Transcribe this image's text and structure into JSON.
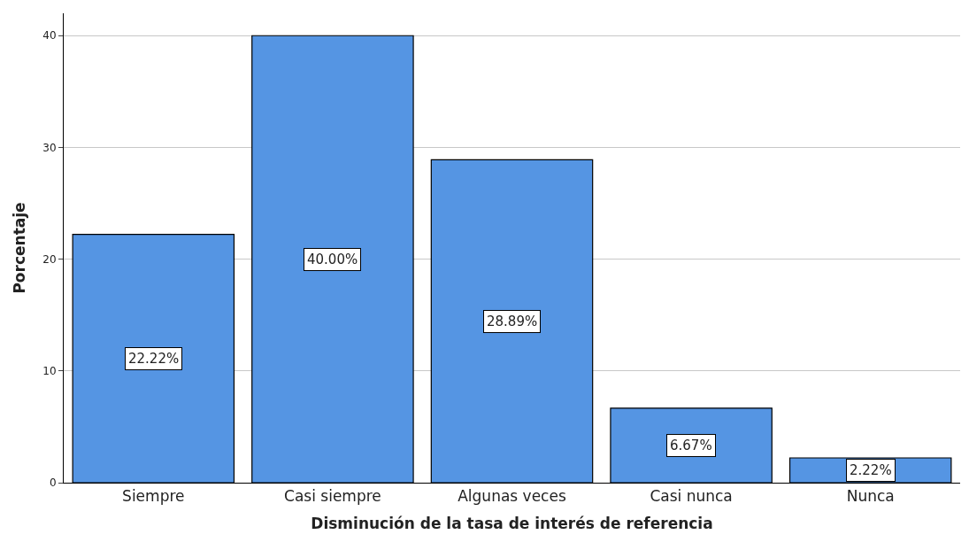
{
  "chart_data": {
    "type": "bar",
    "xlabel": "Disminución de la tasa de interés de referencia",
    "ylabel": "Porcentaje",
    "categories": [
      "Siempre",
      "Casi siempre",
      "Algunas veces",
      "Casi nunca",
      "Nunca"
    ],
    "values": [
      22.22,
      40.0,
      28.89,
      6.67,
      2.22
    ],
    "value_labels": [
      "22.22%",
      "40.00%",
      "28.89%",
      "6.67%",
      "2.22%"
    ],
    "color": "#5595e3",
    "ylim": [
      0,
      42
    ],
    "yticks": [
      0,
      10,
      20,
      30,
      40
    ],
    "grid": "y"
  }
}
